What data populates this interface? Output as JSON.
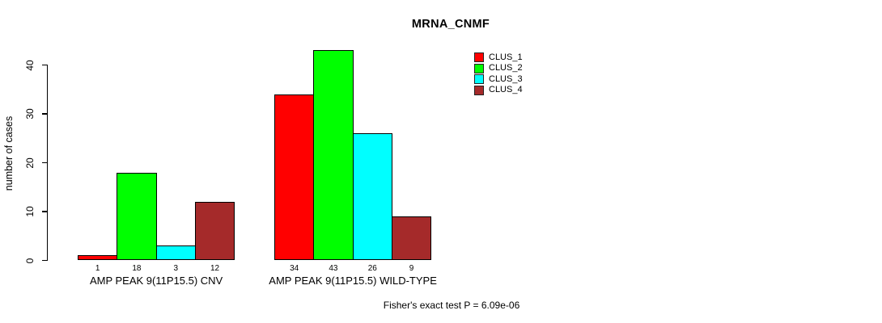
{
  "title": "MRNA_CNMF",
  "y_axis_label": "number of cases",
  "footer_note": "Fisher's exact test P = 6.09e-06",
  "chart_data": {
    "type": "bar",
    "title": "MRNA_CNMF",
    "xlabel": "",
    "ylabel": "number of cases",
    "categories": [
      "AMP PEAK 9(11P15.5) CNV",
      "AMP PEAK 9(11P15.5) WILD-TYPE"
    ],
    "series": [
      {
        "name": "CLUS_1",
        "color": "#ff0000",
        "values": [
          1,
          34
        ]
      },
      {
        "name": "CLUS_2",
        "color": "#00ff00",
        "values": [
          18,
          43
        ]
      },
      {
        "name": "CLUS_3",
        "color": "#00ffff",
        "values": [
          3,
          26
        ]
      },
      {
        "name": "CLUS_4",
        "color": "#a52a2a",
        "values": [
          12,
          9
        ]
      }
    ],
    "yticks": [
      0,
      10,
      20,
      30,
      40
    ],
    "ylim": [
      0,
      43
    ],
    "grid": false,
    "legend_position": "top-right",
    "bar_value_labels": true,
    "annotation": "Fisher's exact test P = 6.09e-06"
  }
}
